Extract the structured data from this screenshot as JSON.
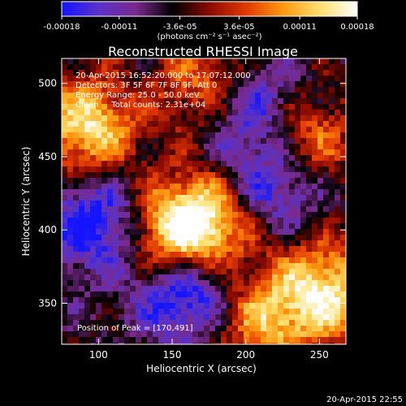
{
  "colorbar": {
    "ticks": [
      "-0.00018",
      "-0.00011",
      "-3.6e-05",
      "3.6e-05",
      "0.00011",
      "0.00018"
    ],
    "tick_values": [
      -0.00018,
      -0.00011,
      -3.6e-05,
      3.6e-05,
      0.00011,
      0.00018
    ],
    "range": [
      -0.00018,
      0.00018
    ],
    "unit_label": "(photons cm⁻² s⁻¹ asec⁻²)",
    "colormap": [
      "#1414ff",
      "#5a32c8",
      "#7a2a8c",
      "#000000",
      "#8a0a00",
      "#e23a00",
      "#ff9a10",
      "#ffe070",
      "#ffffff"
    ]
  },
  "title": "Reconstructed RHESSI Image",
  "annotations": {
    "line1": "20-Apr-2015 16:52:20.000 to 17:07:12.000",
    "line2": "Detectors: 3F 5F 6F 7F 8F 9F, Att 0",
    "line3": "Energy Range: 25.0 - 50.0 keV",
    "line4": "Clean     Total counts: 2.31e+04",
    "peak": "Position of Peak = [170,491]"
  },
  "footer_timestamp": "20-Apr-2015 22:55",
  "chart_data": {
    "type": "heatmap",
    "title": "Reconstructed RHESSI Image",
    "xlabel": "Heliocentric X (arcsec)",
    "ylabel": "Heliocentric Y (arcsec)",
    "xlim": [
      75,
      268
    ],
    "ylim": [
      322,
      517
    ],
    "x_ticks": [
      100,
      150,
      200,
      250
    ],
    "y_ticks": [
      350,
      400,
      450,
      500
    ],
    "value_range": [
      -0.00018,
      0.00018
    ],
    "peak_position": [
      170,
      491
    ],
    "bright_regions_xy_arcsec": [
      {
        "x": 92,
        "y": 470,
        "level": 1.0
      },
      {
        "x": 172,
        "y": 405,
        "level": 0.95
      },
      {
        "x": 150,
        "y": 395,
        "level": 0.9
      },
      {
        "x": 255,
        "y": 358,
        "level": 1.0
      },
      {
        "x": 238,
        "y": 460,
        "level": 0.85
      },
      {
        "x": 175,
        "y": 500,
        "level": 0.7
      },
      {
        "x": 210,
        "y": 340,
        "level": 0.75
      }
    ],
    "dark_regions_xy_arcsec": [
      {
        "x": 160,
        "y": 360,
        "level": -1.0
      },
      {
        "x": 220,
        "y": 435,
        "level": -0.8
      },
      {
        "x": 205,
        "y": 485,
        "level": -0.75
      },
      {
        "x": 100,
        "y": 405,
        "level": -0.8
      }
    ]
  }
}
